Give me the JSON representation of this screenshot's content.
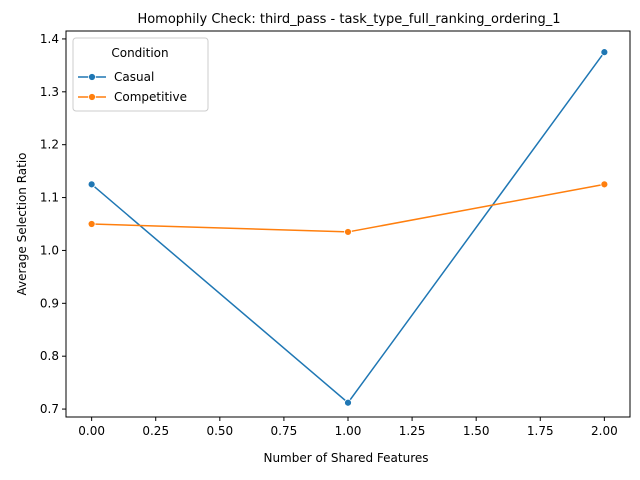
{
  "chart_data": {
    "type": "line",
    "title": "Homophily Check: third_pass - task_type_full_ranking_ordering_1",
    "xlabel": "Number of Shared Features",
    "ylabel": "Average Selection Ratio",
    "xlim": [
      -0.1,
      2.1
    ],
    "ylim": [
      0.685,
      1.415
    ],
    "x_ticks": [
      0.0,
      0.25,
      0.5,
      0.75,
      1.0,
      1.25,
      1.5,
      1.75,
      2.0
    ],
    "x_tick_labels": [
      "0.00",
      "0.25",
      "0.50",
      "0.75",
      "1.00",
      "1.25",
      "1.50",
      "1.75",
      "2.00"
    ],
    "y_ticks": [
      0.7,
      0.8,
      0.9,
      1.0,
      1.1,
      1.2,
      1.3,
      1.4
    ],
    "y_tick_labels": [
      "0.7",
      "0.8",
      "0.9",
      "1.0",
      "1.1",
      "1.2",
      "1.3",
      "1.4"
    ],
    "grid": false,
    "legend": {
      "title": "Condition",
      "placement": "upper-left"
    },
    "series": [
      {
        "name": "Casual",
        "color": "#1f77b4",
        "x": [
          0,
          1,
          2
        ],
        "y": [
          1.125,
          0.712,
          1.375
        ]
      },
      {
        "name": "Competitive",
        "color": "#ff7f0e",
        "x": [
          0,
          1,
          2
        ],
        "y": [
          1.05,
          1.035,
          1.125
        ]
      }
    ]
  }
}
